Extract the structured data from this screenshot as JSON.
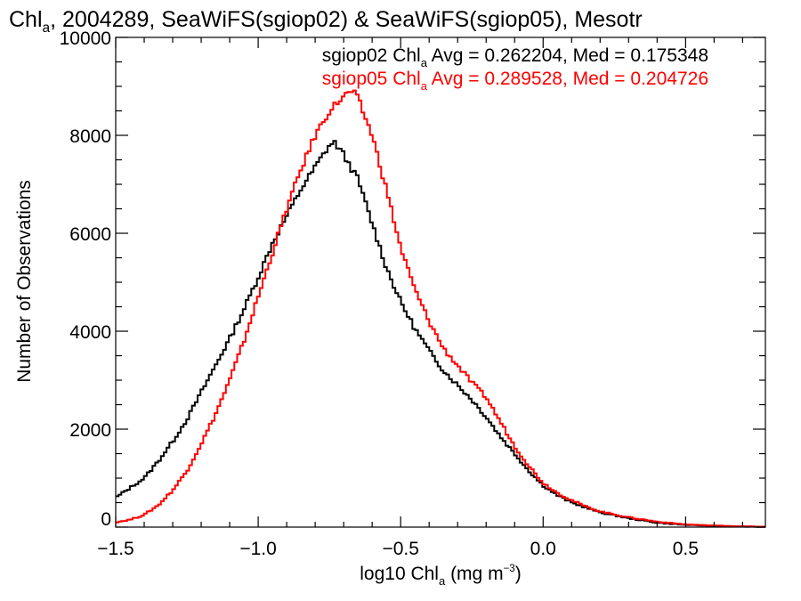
{
  "chart_data": {
    "type": "line",
    "title": {
      "parts": [
        {
          "t": "Chl",
          "sub": false
        },
        {
          "t": "a",
          "sub": true
        },
        {
          "t": ", 2004289, SeaWiFS(sgiop02) & SeaWiFS(sgiop05), Mesotr",
          "sub": false
        }
      ]
    },
    "xlabel": {
      "parts": [
        {
          "t": "log10 Chl",
          "mode": "normal"
        },
        {
          "t": "a",
          "mode": "sub"
        },
        {
          "t": " (mg m",
          "mode": "normal"
        },
        {
          "t": "−3",
          "mode": "sup"
        },
        {
          "t": ")",
          "mode": "normal"
        }
      ]
    },
    "ylabel": "Number of Observations",
    "xlim": [
      -1.5,
      0.78
    ],
    "ylim": [
      0,
      10000
    ],
    "xticks": [
      -1.5,
      -1.0,
      -0.5,
      0.0,
      0.5
    ],
    "xtick_labels": [
      "−1.5",
      "−1.0",
      "−0.5",
      "0.0",
      "0.5"
    ],
    "yticks": [
      0,
      2000,
      4000,
      6000,
      8000,
      10000
    ],
    "ytick_labels": [
      "0",
      "2000",
      "4000",
      "6000",
      "8000",
      "10000"
    ],
    "x_minor_step": 0.1,
    "y_minor_step": 500,
    "grid": false,
    "step": true,
    "annotations": [
      {
        "color": "#000000",
        "parts": [
          {
            "t": "sgiop02 Chl",
            "sub": false
          },
          {
            "t": "a",
            "sub": true
          },
          {
            "t": " Avg = 0.262204, Med = 0.175348",
            "sub": false
          }
        ]
      },
      {
        "color": "#ff0000",
        "parts": [
          {
            "t": "sgiop05 Chl",
            "sub": false
          },
          {
            "t": "a",
            "sub": true
          },
          {
            "t": " Avg = 0.289528, Med = 0.204726",
            "sub": false
          }
        ]
      }
    ],
    "series": [
      {
        "color": "#000000",
        "x": [
          -1.5,
          -1.45,
          -1.4,
          -1.35,
          -1.3,
          -1.25,
          -1.2,
          -1.15,
          -1.1,
          -1.05,
          -1.0,
          -0.95,
          -0.9,
          -0.85,
          -0.8,
          -0.75,
          -0.73,
          -0.7,
          -0.65,
          -0.6,
          -0.55,
          -0.5,
          -0.45,
          -0.4,
          -0.35,
          -0.3,
          -0.25,
          -0.2,
          -0.15,
          -0.1,
          -0.05,
          0.0,
          0.05,
          0.1,
          0.15,
          0.2,
          0.3,
          0.4,
          0.5,
          0.6,
          0.7,
          0.78
        ],
        "y": [
          600,
          800,
          1000,
          1350,
          1750,
          2200,
          2750,
          3300,
          3850,
          4450,
          5100,
          5800,
          6350,
          6900,
          7350,
          7800,
          7850,
          7600,
          7100,
          6200,
          5300,
          4600,
          4050,
          3600,
          3200,
          2900,
          2600,
          2250,
          1850,
          1500,
          1150,
          850,
          650,
          500,
          400,
          300,
          180,
          90,
          45,
          25,
          12,
          5
        ]
      },
      {
        "color": "#ff0000",
        "x": [
          -1.5,
          -1.45,
          -1.4,
          -1.35,
          -1.3,
          -1.25,
          -1.2,
          -1.15,
          -1.1,
          -1.05,
          -1.0,
          -0.95,
          -0.9,
          -0.85,
          -0.8,
          -0.75,
          -0.7,
          -0.67,
          -0.65,
          -0.6,
          -0.55,
          -0.5,
          -0.45,
          -0.4,
          -0.35,
          -0.3,
          -0.25,
          -0.2,
          -0.15,
          -0.1,
          -0.05,
          0.0,
          0.05,
          0.1,
          0.15,
          0.2,
          0.3,
          0.4,
          0.5,
          0.6,
          0.7,
          0.78
        ],
        "y": [
          100,
          150,
          250,
          450,
          750,
          1150,
          1700,
          2300,
          3000,
          3800,
          4700,
          5600,
          6500,
          7300,
          8000,
          8500,
          8800,
          8900,
          8750,
          8000,
          6900,
          5700,
          4850,
          4200,
          3650,
          3300,
          2950,
          2650,
          2150,
          1650,
          1250,
          900,
          700,
          550,
          420,
          320,
          200,
          110,
          55,
          30,
          15,
          6
        ]
      }
    ]
  }
}
